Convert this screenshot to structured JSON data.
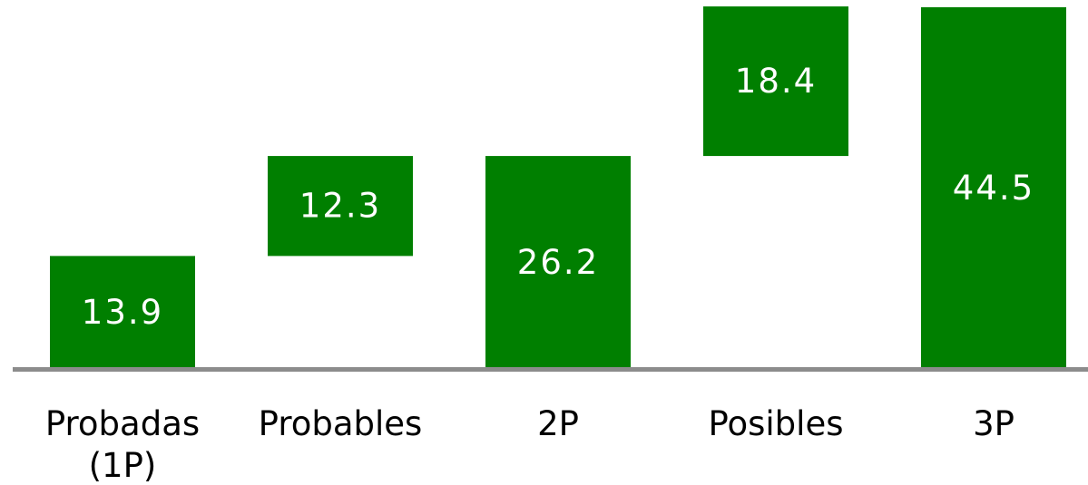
{
  "chart_data": {
    "type": "bar",
    "subtype": "waterfall",
    "categories": [
      "Probadas (1P)",
      "Probables",
      "2P",
      "Posibles",
      "3P"
    ],
    "category_lines": [
      [
        "Probadas",
        "(1P)"
      ],
      [
        "Probables"
      ],
      [
        "2P"
      ],
      [
        "Posibles"
      ],
      [
        "3P"
      ]
    ],
    "values": [
      13.9,
      12.3,
      26.2,
      18.4,
      44.5
    ],
    "value_labels": [
      "13.9",
      "12.3",
      "26.2",
      "18.4",
      "44.5"
    ],
    "bar_kinds": [
      "total",
      "increment",
      "total",
      "increment",
      "total"
    ],
    "title": "",
    "xlabel": "",
    "ylabel": "",
    "ylim": [
      0,
      44.5
    ],
    "grid": false,
    "legend": "none",
    "colors": {
      "bar": "#007f00",
      "axis": "#8c8c8c",
      "value_text": "#ffffff",
      "category_text": "#000000"
    }
  }
}
